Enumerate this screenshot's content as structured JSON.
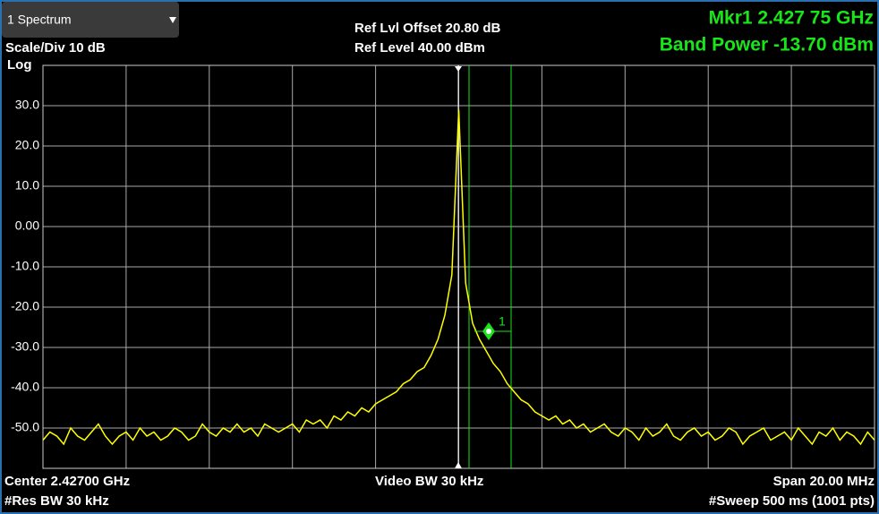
{
  "header": {
    "view": "1 Spectrum",
    "scale_div": "Scale/Div 10 dB",
    "scale_type": "Log",
    "ref_offset": "Ref Lvl Offset 20.80 dB",
    "ref_level": "Ref Level 40.00 dBm",
    "marker_readout": "Mkr1  2.427 75 GHz",
    "band_power": "Band Power -13.70 dBm"
  },
  "footer": {
    "center": "Center 2.42700 GHz",
    "video_bw": "Video BW 30 kHz",
    "span": "Span 20.00 MHz",
    "res_bw": "#Res BW 30 kHz",
    "sweep": "#Sweep 500 ms (1001 pts)"
  },
  "chart_data": {
    "type": "line",
    "ylim": [
      -60,
      40
    ],
    "yticks": [
      {
        "value": 30,
        "label": "30.0"
      },
      {
        "value": 20,
        "label": "20.0"
      },
      {
        "value": 10,
        "label": "10.0"
      },
      {
        "value": 0,
        "label": "0.00"
      },
      {
        "value": -10,
        "label": "-10.0"
      },
      {
        "value": -20,
        "label": "-20.0"
      },
      {
        "value": -30,
        "label": "-30.0"
      },
      {
        "value": -40,
        "label": "-40.0"
      },
      {
        "value": -50,
        "label": "-50.0"
      }
    ],
    "grid": true,
    "series": [
      {
        "color": "#ffff00",
        "values": [
          -53,
          -51,
          -52,
          -54,
          -50,
          -52,
          -53,
          -51,
          -49,
          -52,
          -54,
          -52,
          -51,
          -53,
          -50,
          -52,
          -51,
          -53,
          -52,
          -50,
          -51,
          -53,
          -52,
          -49,
          -51,
          -52,
          -50,
          -51,
          -49,
          -51,
          -50,
          -52,
          -49,
          -50,
          -51,
          -50,
          -49,
          -51,
          -48,
          -49,
          -48,
          -50,
          -47,
          -48,
          -46,
          -47,
          -45,
          -46,
          -44,
          -43,
          -42,
          -41,
          -39,
          -38,
          -36,
          -35,
          -32,
          -28,
          -22,
          -12,
          29,
          -14,
          -24,
          -28,
          -31,
          -34,
          -36,
          -39,
          -41,
          -43,
          -44,
          -46,
          -47,
          -48,
          -47,
          -49,
          -48,
          -50,
          -49,
          -51,
          -50,
          -49,
          -51,
          -52,
          -50,
          -51,
          -53,
          -50,
          -52,
          -51,
          -49,
          -52,
          -53,
          -51,
          -50,
          -52,
          -51,
          -53,
          -52,
          -50,
          -51,
          -54,
          -52,
          -51,
          -50,
          -53,
          -52,
          -51,
          -53,
          -50,
          -52,
          -54,
          -51,
          -52,
          -50,
          -53,
          -51,
          -52,
          -54,
          -51,
          -53
        ]
      }
    ],
    "marker": {
      "label": "1",
      "value": -26
    }
  }
}
